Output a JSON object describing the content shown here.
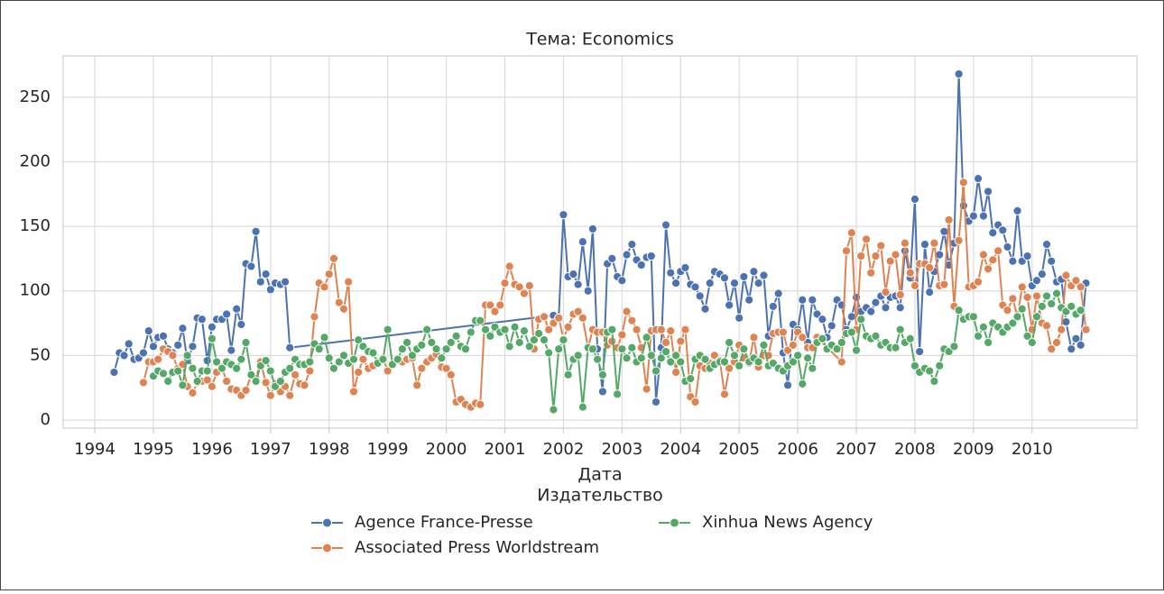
{
  "chart_data": {
    "type": "line",
    "title": "Тема: Economics",
    "x_label": "Дата",
    "legend_title": "Издательство",
    "legend": "lower center",
    "xlim": [
      1993.46,
      2011.79
    ],
    "ylim": [
      -6.3,
      282
    ],
    "grid": true,
    "xticks": [
      1994,
      1995,
      1996,
      1997,
      1998,
      1999,
      2000,
      2001,
      2002,
      2003,
      2004,
      2005,
      2006,
      2007,
      2008,
      2009,
      2010
    ],
    "yticks": [
      0,
      50,
      100,
      150,
      200,
      250
    ],
    "series": [
      {
        "name": "Agence France-Presse",
        "color": "#4c72b0",
        "x": [
          1994.33,
          1994.42,
          1994.5,
          1994.58,
          1994.67,
          1994.75,
          1994.83,
          1994.92,
          1995.0,
          1995.08,
          1995.17,
          1995.25,
          1995.33,
          1995.42,
          1995.5,
          1995.58,
          1995.67,
          1995.75,
          1995.83,
          1995.92,
          1996.0,
          1996.08,
          1996.17,
          1996.25,
          1996.33,
          1996.42,
          1996.5,
          1996.58,
          1996.67,
          1996.75,
          1996.83,
          1996.92,
          1997.0,
          1997.08,
          1997.17,
          1997.25,
          1997.33,
          2001.83,
          2001.92,
          2002.0,
          2002.08,
          2002.17,
          2002.25,
          2002.33,
          2002.42,
          2002.5,
          2002.58,
          2002.67,
          2002.75,
          2002.83,
          2002.92,
          2003.0,
          2003.08,
          2003.17,
          2003.25,
          2003.33,
          2003.42,
          2003.5,
          2003.58,
          2003.67,
          2003.75,
          2003.83,
          2003.92,
          2004.0,
          2004.08,
          2004.17,
          2004.25,
          2004.33,
          2004.42,
          2004.5,
          2004.58,
          2004.67,
          2004.75,
          2004.83,
          2004.92,
          2005.0,
          2005.08,
          2005.17,
          2005.25,
          2005.33,
          2005.42,
          2005.5,
          2005.58,
          2005.67,
          2005.75,
          2005.83,
          2005.92,
          2006.0,
          2006.08,
          2006.17,
          2006.25,
          2006.33,
          2006.42,
          2006.5,
          2006.58,
          2006.67,
          2006.75,
          2006.83,
          2006.92,
          2007.0,
          2007.08,
          2007.17,
          2007.25,
          2007.33,
          2007.42,
          2007.5,
          2007.58,
          2007.67,
          2007.75,
          2007.83,
          2007.92,
          2008.0,
          2008.08,
          2008.17,
          2008.25,
          2008.33,
          2008.42,
          2008.5,
          2008.58,
          2008.67,
          2008.75,
          2008.83,
          2008.92,
          2009.0,
          2009.08,
          2009.17,
          2009.25,
          2009.33,
          2009.42,
          2009.5,
          2009.58,
          2009.67,
          2009.75,
          2009.83,
          2009.92,
          2010.0,
          2010.08,
          2010.17,
          2010.25,
          2010.33,
          2010.42,
          2010.5,
          2010.58,
          2010.67,
          2010.75,
          2010.83,
          2010.92
        ],
        "values": [
          37,
          52,
          50,
          59,
          47,
          48,
          52,
          69,
          57,
          64,
          65,
          55,
          52,
          58,
          71,
          46,
          57,
          79,
          78,
          46,
          72,
          78,
          78,
          82,
          54,
          86,
          74,
          121,
          119,
          146,
          107,
          113,
          101,
          106,
          105,
          107,
          56,
          81,
          79,
          159,
          111,
          113,
          105,
          138,
          100,
          148,
          55,
          22,
          121,
          125,
          111,
          108,
          128,
          136,
          124,
          120,
          126,
          127,
          14,
          56,
          151,
          114,
          106,
          115,
          118,
          105,
          103,
          96,
          86,
          106,
          115,
          113,
          110,
          89,
          106,
          79,
          111,
          93,
          115,
          106,
          112,
          65,
          88,
          98,
          52,
          27,
          74,
          70,
          93,
          60,
          93,
          82,
          78,
          64,
          73,
          93,
          89,
          70,
          80,
          95,
          84,
          87,
          84,
          91,
          96,
          87,
          95,
          96,
          87,
          131,
          110,
          171,
          53,
          136,
          99,
          115,
          128,
          146,
          120,
          137,
          268,
          166,
          154,
          158,
          187,
          158,
          177,
          145,
          151,
          147,
          134,
          123,
          162,
          123,
          127,
          104,
          108,
          113,
          136,
          123,
          107,
          109,
          76,
          55,
          63,
          58,
          106
        ]
      },
      {
        "name": "Associated Press Worldstream",
        "color": "#dd8452",
        "x": [
          1994.83,
          1994.92,
          1995.0,
          1995.08,
          1995.17,
          1995.25,
          1995.33,
          1995.42,
          1995.5,
          1995.58,
          1995.67,
          1995.75,
          1995.83,
          1995.92,
          1996.0,
          1996.08,
          1996.17,
          1996.25,
          1996.33,
          1996.42,
          1996.5,
          1996.58,
          1996.67,
          1996.75,
          1996.83,
          1996.92,
          1997.0,
          1997.08,
          1997.17,
          1997.25,
          1997.33,
          1997.42,
          1997.5,
          1997.58,
          1997.67,
          1997.75,
          1997.83,
          1997.92,
          1998.0,
          1998.08,
          1998.17,
          1998.25,
          1998.33,
          1998.42,
          1998.5,
          1998.58,
          1998.67,
          1998.75,
          1998.83,
          1998.92,
          1999.0,
          1999.08,
          1999.17,
          1999.25,
          1999.33,
          1999.42,
          1999.5,
          1999.58,
          1999.67,
          1999.75,
          1999.83,
          1999.92,
          2000.0,
          2000.08,
          2000.17,
          2000.25,
          2000.33,
          2000.42,
          2000.5,
          2000.58,
          2000.67,
          2000.75,
          2000.83,
          2000.92,
          2001.0,
          2001.08,
          2001.17,
          2001.25,
          2001.33,
          2001.42,
          2001.5,
          2001.58,
          2001.67,
          2001.75,
          2001.83,
          2001.92,
          2002.0,
          2002.08,
          2002.17,
          2002.25,
          2002.33,
          2002.42,
          2002.5,
          2002.58,
          2002.67,
          2002.75,
          2002.83,
          2002.92,
          2003.0,
          2003.08,
          2003.17,
          2003.25,
          2003.33,
          2003.42,
          2003.5,
          2003.58,
          2003.67,
          2003.75,
          2003.83,
          2003.92,
          2004.0,
          2004.08,
          2004.17,
          2004.25,
          2004.33,
          2004.42,
          2004.5,
          2004.58,
          2004.67,
          2004.75,
          2004.83,
          2004.92,
          2005.0,
          2005.08,
          2005.17,
          2005.25,
          2005.33,
          2005.42,
          2005.5,
          2005.58,
          2005.67,
          2005.75,
          2005.83,
          2005.92,
          2006.0,
          2006.08,
          2006.17,
          2006.25,
          2006.33,
          2006.75,
          2006.83,
          2006.92,
          2007.0,
          2007.08,
          2007.17,
          2007.25,
          2007.33,
          2007.42,
          2007.5,
          2007.58,
          2007.67,
          2007.75,
          2007.83,
          2007.92,
          2008.0,
          2008.08,
          2008.17,
          2008.25,
          2008.33,
          2008.42,
          2008.5,
          2008.58,
          2008.67,
          2008.75,
          2008.83,
          2008.92,
          2009.0,
          2009.08,
          2009.17,
          2009.25,
          2009.33,
          2009.42,
          2009.5,
          2009.58,
          2009.67,
          2009.75,
          2009.83,
          2009.92,
          2010.0,
          2010.08,
          2010.17,
          2010.25,
          2010.33,
          2010.42,
          2010.5,
          2010.58,
          2010.67,
          2010.75,
          2010.83,
          2010.92
        ],
        "values": [
          29,
          45,
          45,
          47,
          55,
          53,
          50,
          40,
          43,
          26,
          21,
          29,
          30,
          31,
          26,
          37,
          41,
          30,
          24,
          23,
          19,
          23,
          35,
          32,
          45,
          29,
          19,
          28,
          22,
          26,
          19,
          35,
          28,
          27,
          38,
          80,
          106,
          103,
          113,
          125,
          91,
          86,
          107,
          22,
          37,
          47,
          40,
          42,
          45,
          48,
          38,
          43,
          47,
          45,
          47,
          48,
          27,
          40,
          45,
          48,
          51,
          41,
          40,
          35,
          14,
          16,
          12,
          10,
          13,
          12,
          89,
          89,
          84,
          89,
          106,
          119,
          105,
          103,
          98,
          104,
          55,
          78,
          80,
          70,
          75,
          79,
          63,
          72,
          82,
          84,
          79,
          56,
          70,
          68,
          68,
          58,
          61,
          56,
          66,
          84,
          77,
          70,
          56,
          24,
          69,
          70,
          70,
          60,
          69,
          37,
          61,
          70,
          18,
          14,
          42,
          40,
          44,
          50,
          46,
          20,
          40,
          45,
          58,
          48,
          44,
          64,
          41,
          50,
          50,
          67,
          68,
          68,
          54,
          58,
          68,
          64,
          56,
          56,
          64,
          45,
          131,
          145,
          70,
          127,
          140,
          114,
          127,
          135,
          99,
          123,
          128,
          97,
          137,
          114,
          104,
          121,
          121,
          118,
          137,
          104,
          105,
          155,
          88,
          139,
          184,
          103,
          104,
          107,
          128,
          117,
          124,
          131,
          89,
          85,
          94,
          80,
          103,
          95,
          70,
          96,
          75,
          73,
          55,
          60,
          70,
          112,
          104,
          108,
          103,
          70
        ]
      },
      {
        "name": "Xinhua News Agency",
        "color": "#55a868",
        "x": [
          1995.0,
          1995.08,
          1995.17,
          1995.25,
          1995.33,
          1995.42,
          1995.5,
          1995.58,
          1995.67,
          1995.75,
          1995.83,
          1995.92,
          1996.0,
          1996.08,
          1996.17,
          1996.25,
          1996.33,
          1996.42,
          1996.5,
          1996.58,
          1996.67,
          1996.75,
          1996.83,
          1996.92,
          1997.0,
          1997.08,
          1997.17,
          1997.25,
          1997.33,
          1997.42,
          1997.5,
          1997.58,
          1997.67,
          1997.75,
          1997.83,
          1997.92,
          1998.0,
          1998.08,
          1998.17,
          1998.25,
          1998.33,
          1998.42,
          1998.5,
          1998.58,
          1998.67,
          1998.75,
          1998.83,
          1998.92,
          1999.0,
          1999.08,
          1999.17,
          1999.25,
          1999.33,
          1999.42,
          1999.5,
          1999.58,
          1999.67,
          1999.75,
          1999.83,
          1999.92,
          2000.0,
          2000.08,
          2000.17,
          2000.25,
          2000.33,
          2000.42,
          2000.5,
          2000.58,
          2000.67,
          2000.75,
          2000.83,
          2000.92,
          2001.0,
          2001.08,
          2001.17,
          2001.25,
          2001.33,
          2001.42,
          2001.5,
          2001.58,
          2001.67,
          2001.75,
          2001.83,
          2001.92,
          2002.0,
          2002.08,
          2002.17,
          2002.25,
          2002.33,
          2002.42,
          2002.5,
          2002.58,
          2002.67,
          2002.75,
          2002.83,
          2002.92,
          2003.0,
          2003.08,
          2003.17,
          2003.25,
          2003.33,
          2003.42,
          2003.5,
          2003.58,
          2003.67,
          2003.75,
          2003.83,
          2003.92,
          2004.0,
          2004.08,
          2004.17,
          2004.25,
          2004.33,
          2004.42,
          2004.5,
          2004.58,
          2004.67,
          2004.75,
          2004.83,
          2004.92,
          2005.0,
          2005.08,
          2005.17,
          2005.25,
          2005.33,
          2005.42,
          2005.5,
          2005.58,
          2005.67,
          2005.75,
          2005.83,
          2005.92,
          2006.0,
          2006.08,
          2006.17,
          2006.25,
          2006.33,
          2006.42,
          2006.5,
          2006.58,
          2006.67,
          2006.75,
          2006.83,
          2006.92,
          2007.0,
          2007.08,
          2007.17,
          2007.25,
          2007.33,
          2007.42,
          2007.5,
          2007.58,
          2007.67,
          2007.75,
          2007.83,
          2007.92,
          2008.0,
          2008.08,
          2008.17,
          2008.25,
          2008.33,
          2008.42,
          2008.5,
          2008.58,
          2008.67,
          2008.75,
          2008.83,
          2008.92,
          2009.0,
          2009.08,
          2009.17,
          2009.25,
          2009.33,
          2009.42,
          2009.5,
          2009.58,
          2009.67,
          2009.75,
          2009.83,
          2009.92,
          2010.0,
          2010.08,
          2010.17,
          2010.25,
          2010.33,
          2010.42,
          2010.5,
          2010.58,
          2010.67,
          2010.75,
          2010.83
        ],
        "values": [
          34,
          38,
          36,
          30,
          37,
          38,
          27,
          50,
          40,
          30,
          38,
          38,
          63,
          45,
          40,
          45,
          43,
          40,
          47,
          60,
          35,
          30,
          42,
          46,
          38,
          26,
          30,
          37,
          40,
          47,
          43,
          43,
          45,
          59,
          55,
          64,
          48,
          40,
          45,
          50,
          44,
          47,
          62,
          57,
          53,
          52,
          44,
          47,
          70,
          43,
          47,
          55,
          60,
          50,
          55,
          58,
          70,
          60,
          55,
          48,
          55,
          60,
          65,
          57,
          55,
          68,
          77,
          77,
          70,
          65,
          72,
          68,
          70,
          57,
          72,
          60,
          69,
          57,
          62,
          67,
          62,
          52,
          8,
          55,
          62,
          35,
          47,
          50,
          10,
          56,
          55,
          47,
          35,
          68,
          70,
          20,
          55,
          48,
          56,
          45,
          48,
          64,
          50,
          38,
          48,
          53,
          45,
          50,
          45,
          30,
          32,
          47,
          50,
          47,
          40,
          43,
          45,
          45,
          60,
          50,
          42,
          55,
          45,
          48,
          45,
          58,
          42,
          44,
          40,
          38,
          42,
          45,
          50,
          28,
          48,
          40,
          60,
          63,
          55,
          58,
          55,
          60,
          67,
          68,
          54,
          78,
          65,
          63,
          65,
          58,
          60,
          56,
          56,
          70,
          60,
          63,
          42,
          37,
          40,
          38,
          30,
          42,
          55,
          53,
          57,
          85,
          78,
          80,
          80,
          65,
          72,
          60,
          75,
          72,
          68,
          72,
          75,
          80,
          86,
          65,
          60,
          80,
          88,
          96,
          90,
          98,
          87,
          84,
          88,
          82,
          85
        ]
      }
    ]
  }
}
